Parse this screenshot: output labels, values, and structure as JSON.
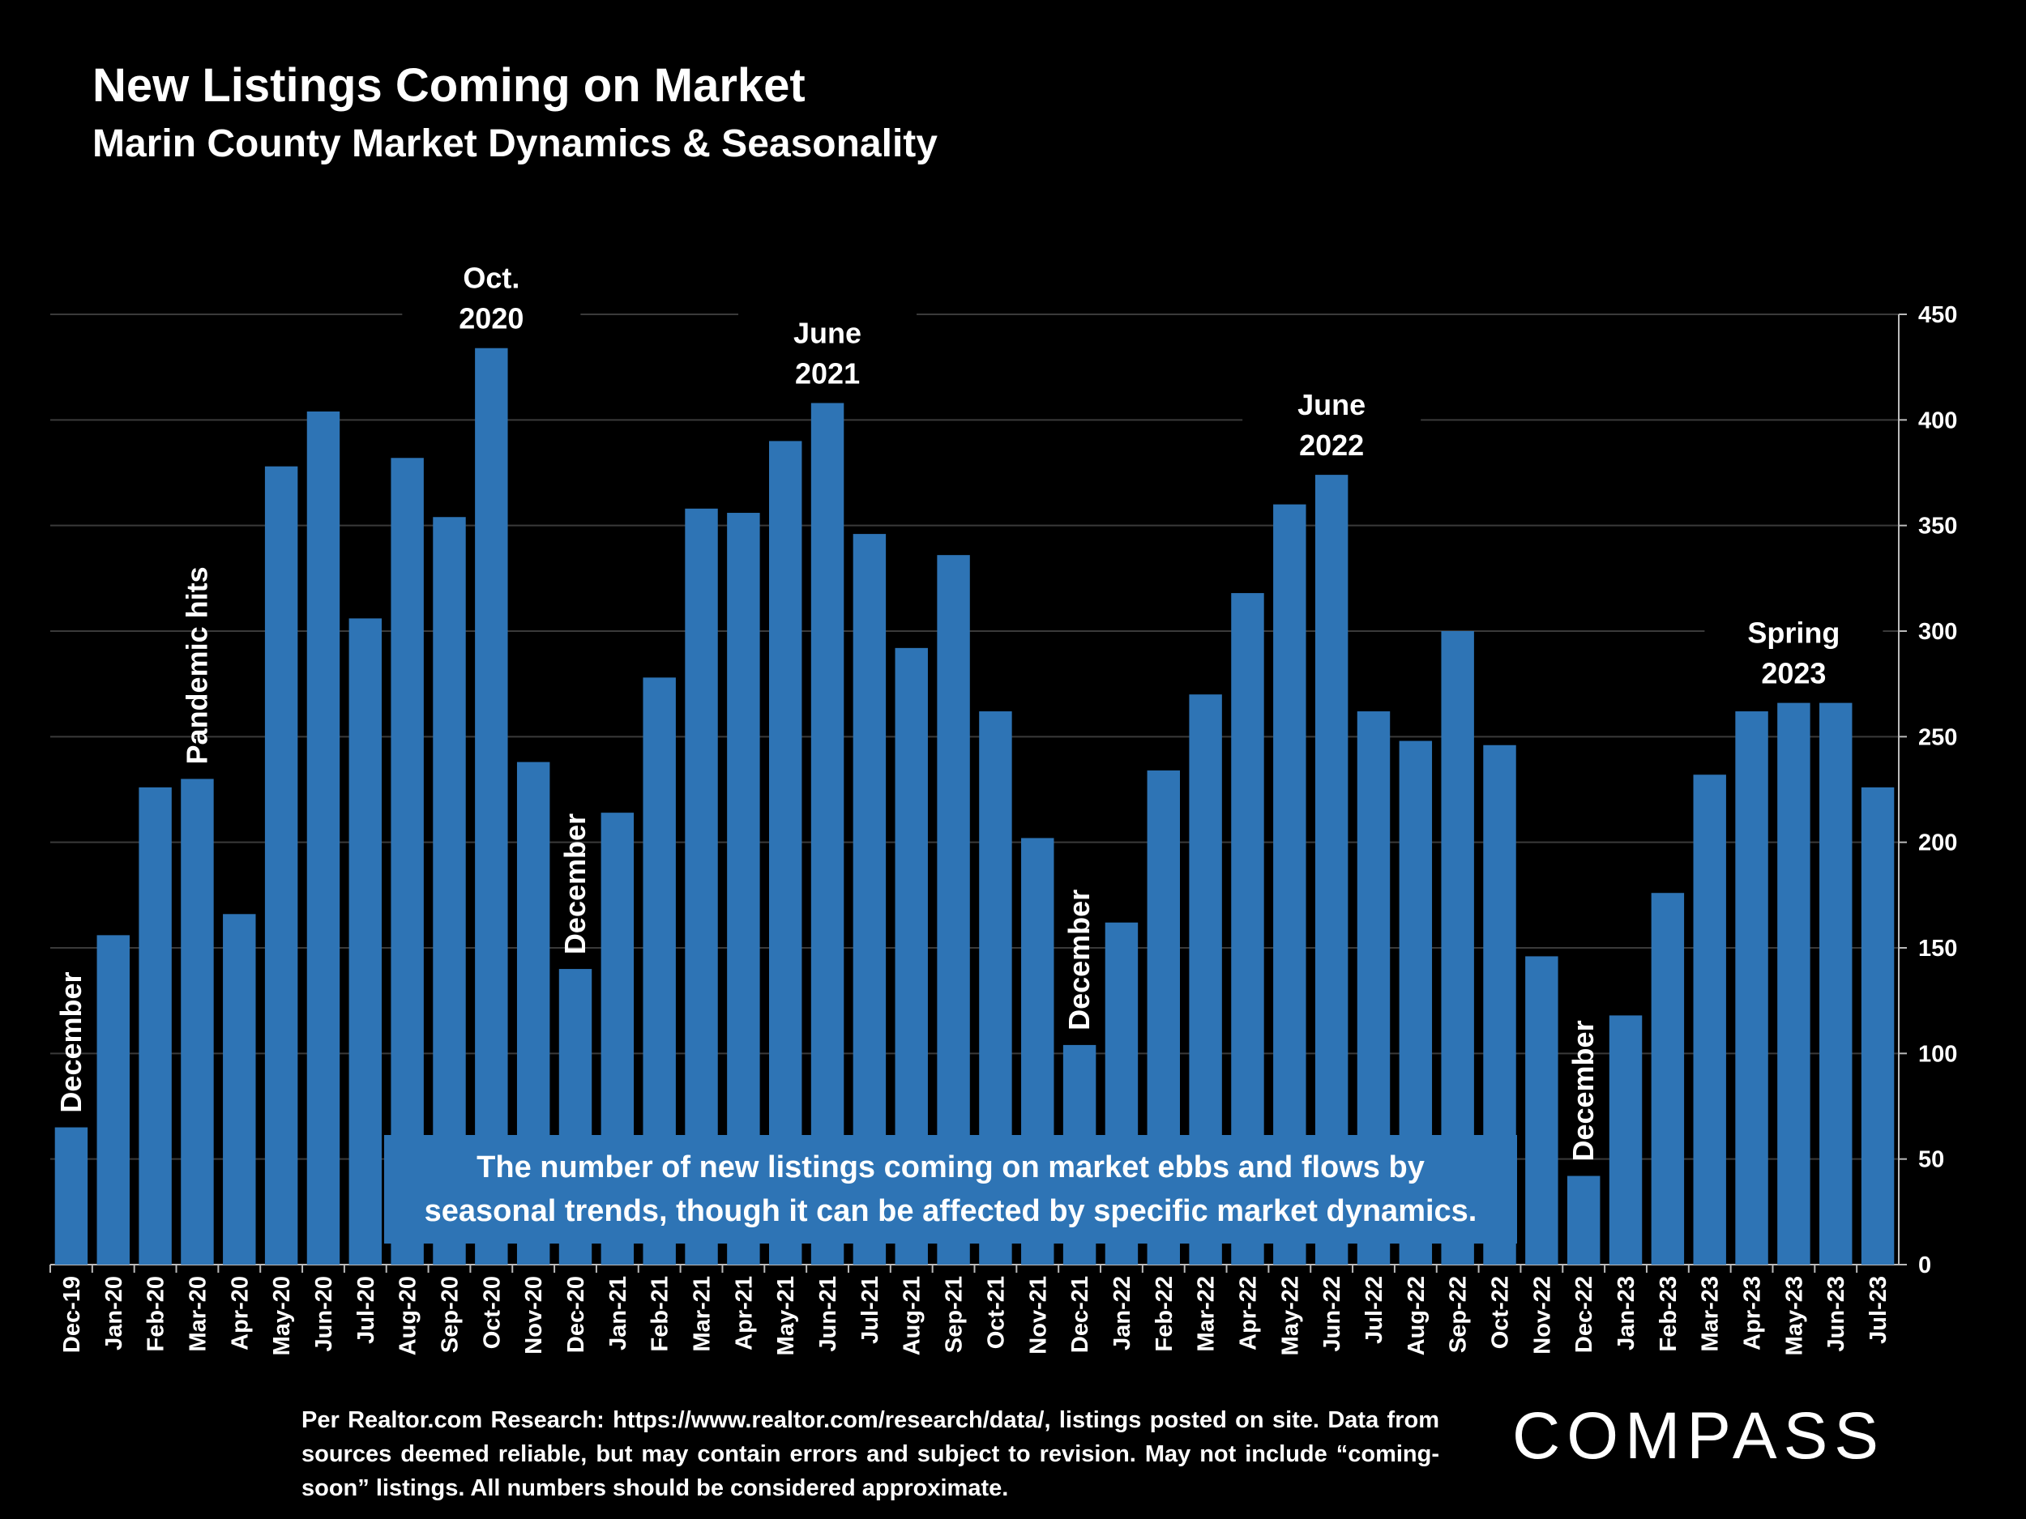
{
  "title": "New Listings Coming on Market",
  "subtitle": "Marin County Market Dynamics & Seasonality",
  "callout": "The number of new listings coming on market ebbs and flows by seasonal trends, though it can be affected by specific market dynamics.",
  "source_note": "Per Realtor.com Research: https://www.realtor.com/research/data/, listings posted on site. Data from sources deemed reliable, but may contain errors and subject to revision. May not include “coming-soon” listings. All numbers should be considered approximate.",
  "logo": "COMPASS",
  "colors": {
    "bar": "#2e74b5",
    "background": "#000000",
    "text": "#ffffff",
    "grid": "#3a3a3a"
  },
  "chart_data": {
    "type": "bar",
    "title": "New Listings Coming on Market",
    "subtitle": "Marin County Market Dynamics & Seasonality",
    "xlabel": "",
    "ylabel": "",
    "ylim": [
      0,
      450
    ],
    "yticks": [
      0,
      50,
      100,
      150,
      200,
      250,
      300,
      350,
      400,
      450
    ],
    "y_axis_side": "right",
    "grid": true,
    "categories": [
      "Dec-19",
      "Jan-20",
      "Feb-20",
      "Mar-20",
      "Apr-20",
      "May-20",
      "Jun-20",
      "Jul-20",
      "Aug-20",
      "Sep-20",
      "Oct-20",
      "Nov-20",
      "Dec-20",
      "Jan-21",
      "Feb-21",
      "Mar-21",
      "Apr-21",
      "May-21",
      "Jun-21",
      "Jul-21",
      "Aug-21",
      "Sep-21",
      "Oct-21",
      "Nov-21",
      "Dec-21",
      "Jan-22",
      "Feb-22",
      "Mar-22",
      "Apr-22",
      "May-22",
      "Jun-22",
      "Jul-22",
      "Aug-22",
      "Sep-22",
      "Oct-22",
      "Nov-22",
      "Dec-22",
      "Jan-23",
      "Feb-23",
      "Mar-23",
      "Apr-23",
      "May-23",
      "Jun-23",
      "Jul-23"
    ],
    "values": [
      65,
      156,
      226,
      230,
      166,
      378,
      404,
      306,
      382,
      354,
      434,
      238,
      140,
      214,
      278,
      358,
      356,
      390,
      408,
      346,
      292,
      336,
      262,
      202,
      104,
      162,
      234,
      270,
      318,
      360,
      374,
      262,
      248,
      300,
      246,
      146,
      42,
      118,
      176,
      232,
      262,
      266,
      266,
      226
    ],
    "annotations": [
      {
        "lines": [
          "December"
        ],
        "category": "Dec-19",
        "rotated": true
      },
      {
        "lines": [
          "Pandemic hits"
        ],
        "category": "Mar-20",
        "rotated": true
      },
      {
        "lines": [
          "Oct.",
          "2020"
        ],
        "category": "Oct-20",
        "rotated": false
      },
      {
        "lines": [
          "December"
        ],
        "category": "Dec-20",
        "rotated": true
      },
      {
        "lines": [
          "June",
          "2021"
        ],
        "category": "Jun-21",
        "rotated": false
      },
      {
        "lines": [
          "December"
        ],
        "category": "Dec-21",
        "rotated": true
      },
      {
        "lines": [
          "June",
          "2022"
        ],
        "category": "Jun-22",
        "rotated": false
      },
      {
        "lines": [
          "December"
        ],
        "category": "Dec-22",
        "rotated": true
      },
      {
        "lines": [
          "Spring",
          "2023"
        ],
        "category": "May-23",
        "rotated": false
      }
    ]
  }
}
